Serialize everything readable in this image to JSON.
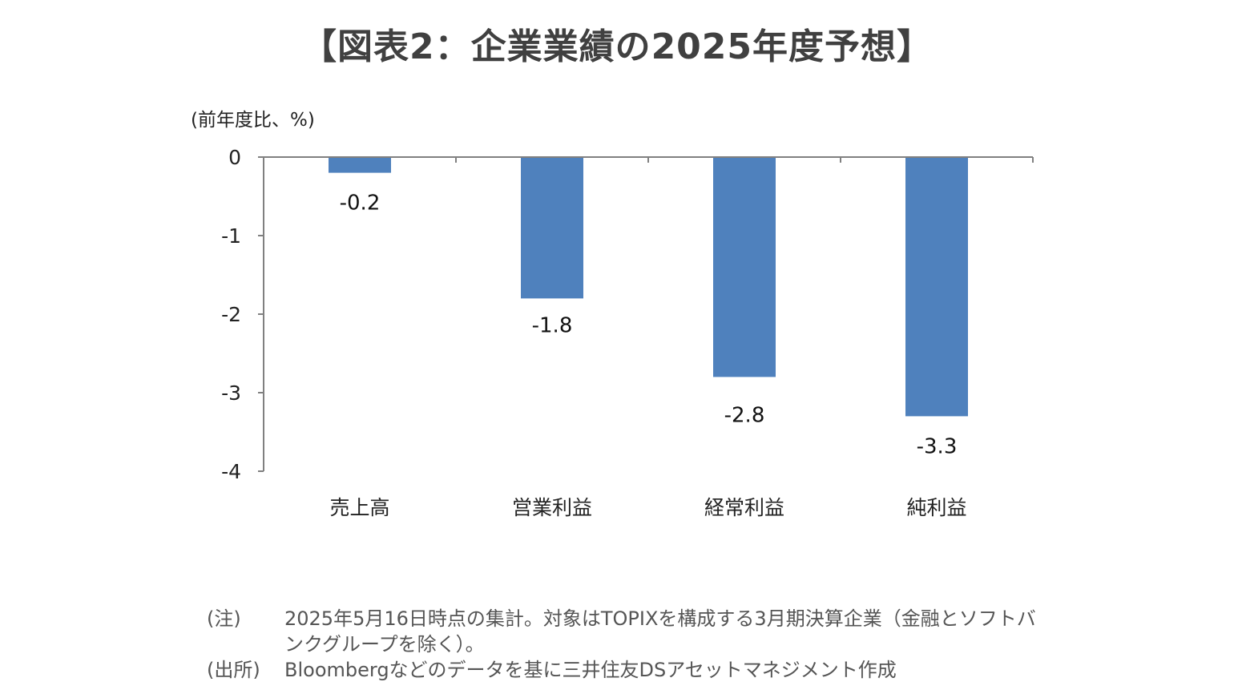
{
  "title": "【図表2：企業業績の2025年度予想】",
  "chart_data": {
    "type": "bar",
    "unit_label": "(前年度比、%)",
    "categories": [
      "売上高",
      "営業利益",
      "経常利益",
      "純利益"
    ],
    "values": [
      -0.2,
      -1.8,
      -2.8,
      -3.3
    ],
    "data_labels": [
      "-0.2",
      "-1.8",
      "-2.8",
      "-3.3"
    ],
    "yticks": [
      "0",
      "-1",
      "-2",
      "-3",
      "-4"
    ],
    "ylim": [
      -4,
      0
    ],
    "bar_color": "#4f81bd",
    "axis_color": "#808080",
    "grid": false,
    "legend": "none"
  },
  "notes": [
    {
      "label": "(注)",
      "text": "2025年5月16日時点の集計。対象はTOPIXを構成する3月期決算企業（金融とソフトバンクグループを除く）。"
    },
    {
      "label": "(出所)",
      "text": "Bloombergなどのデータを基に三井住友DSアセットマネジメント作成"
    }
  ]
}
